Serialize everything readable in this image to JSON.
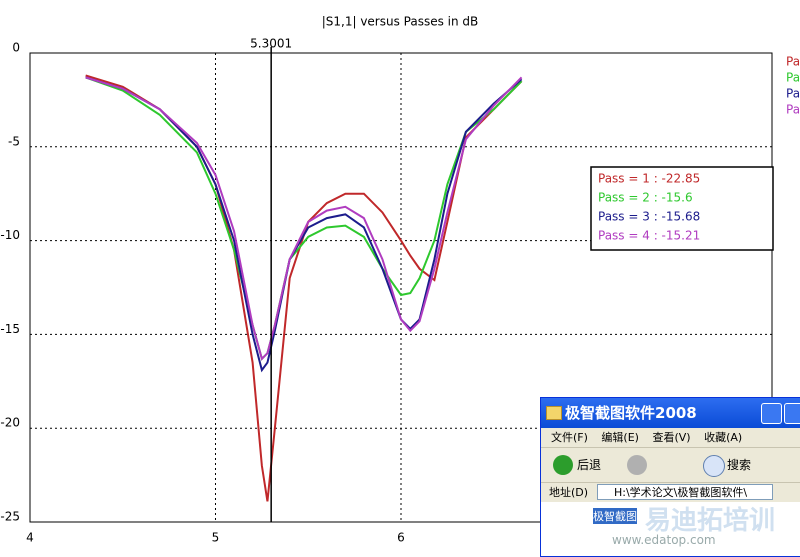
{
  "chart_data": {
    "type": "line",
    "title": "|S1,1| versus Passes in dB",
    "x": [
      4.3,
      4.5,
      4.7,
      4.9,
      5.0,
      5.1,
      5.2,
      5.25,
      5.28,
      5.32,
      5.4,
      5.5,
      5.6,
      5.7,
      5.8,
      5.9,
      6.0,
      6.05,
      6.1,
      6.18,
      6.25,
      6.35,
      6.5,
      6.65
    ],
    "series": [
      {
        "name": "Pass = 1",
        "color": "#c0282a",
        "values": [
          -1.2,
          -1.8,
          -3.0,
          -5.0,
          -7.0,
          -10.5,
          -16.5,
          -22,
          -23.9,
          -20,
          -12,
          -9,
          -8,
          -7.5,
          -7.5,
          -8.5,
          -10,
          -10.8,
          -11.5,
          -12.1,
          -9,
          -4.5,
          -3.0,
          -1.5
        ]
      },
      {
        "name": "Pass = 2",
        "color": "#2ec82e",
        "values": [
          -1.3,
          -2.0,
          -3.3,
          -5.3,
          -7.5,
          -10.5,
          -14.5,
          -16.3,
          -16,
          -14.5,
          -11,
          -9.8,
          -9.3,
          -9.2,
          -9.8,
          -11.5,
          -12.9,
          -12.8,
          -12,
          -10,
          -7,
          -4.2,
          -3.0,
          -1.5
        ]
      },
      {
        "name": "Pass = 3",
        "color": "#1c1c8c",
        "values": [
          -1.3,
          -1.9,
          -3.0,
          -5.0,
          -7.0,
          -10,
          -15,
          -16.9,
          -16.5,
          -14.8,
          -11,
          -9.3,
          -8.8,
          -8.6,
          -9.3,
          -11.5,
          -14.2,
          -14.7,
          -14.2,
          -11,
          -7.5,
          -4.2,
          -2.7,
          -1.4
        ]
      },
      {
        "name": "Pass = 4",
        "color": "#b03cc0",
        "values": [
          -1.3,
          -1.9,
          -3.0,
          -4.8,
          -6.5,
          -9.5,
          -14.5,
          -16.3,
          -16,
          -14.5,
          -11,
          -9.0,
          -8.4,
          -8.2,
          -8.8,
          -11,
          -14.2,
          -14.8,
          -14.3,
          -11.5,
          -8.5,
          -4.6,
          -2.8,
          -1.3
        ]
      }
    ],
    "xlim": [
      4,
      8
    ],
    "xticks": [
      4,
      5,
      6
    ],
    "ylim": [
      -25,
      0
    ],
    "yticks": [
      0,
      -5,
      -10,
      -15,
      -20,
      -25
    ],
    "grid": true,
    "marker": {
      "x": 5.3001,
      "readouts": [
        "Pass = 1 : -22.85",
        "Pass = 2 : -15.6",
        "Pass = 3 : -15.68",
        "Pass = 4 : -15.21"
      ]
    }
  },
  "window": {
    "title": "极智截图软件2008",
    "menu": [
      "文件(F)",
      "编辑(E)",
      "查看(V)",
      "收藏(A)"
    ],
    "back": "后退",
    "search": "搜索",
    "address_label": "地址(D)",
    "address": "H:\\学术论文\\极智截图软件\\",
    "item": "极智截图"
  },
  "watermark": {
    "brand": "易迪拓培训",
    "url": "www.edatop.com"
  }
}
